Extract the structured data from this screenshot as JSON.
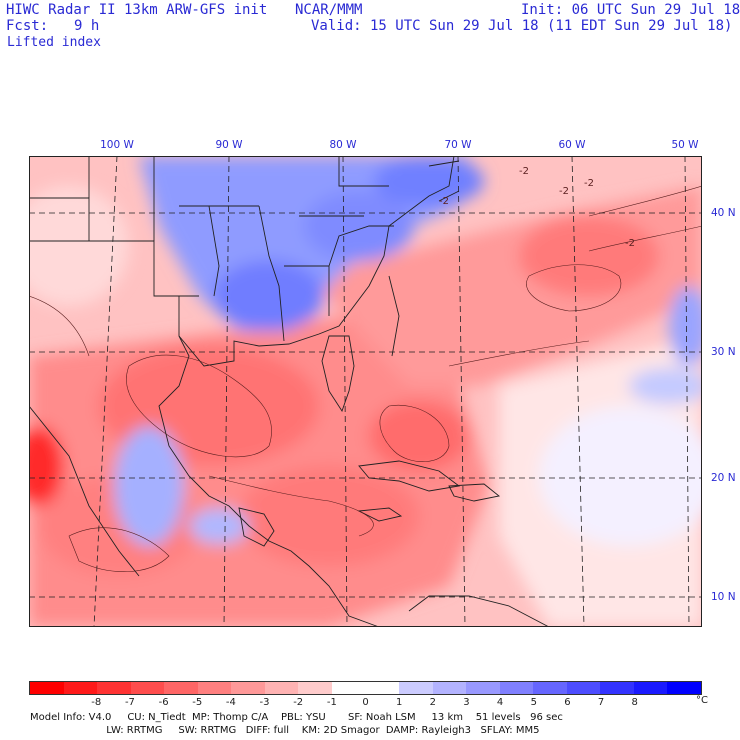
{
  "header": {
    "title": "HIWC Radar II 13km ARW-GFS init",
    "org": "NCAR/MMM",
    "init": "Init: 06 UTC Sun 29 Jul 18",
    "fcst_label": "Fcst:",
    "fcst_value": "9 h",
    "valid": "Valid: 15 UTC Sun 29 Jul 18 (11 EDT Sun 29 Jul 18)",
    "field": "Lifted index"
  },
  "map": {
    "lon_labels": [
      "100 W",
      "90 W",
      "80 W",
      "70 W",
      "60 W",
      "50 W"
    ],
    "lat_labels": [
      "40 N",
      "30 N",
      "20 N",
      "10 N"
    ],
    "contour_labels": [
      "-2",
      "-2",
      "-2",
      "-2",
      "-2"
    ]
  },
  "colorbar": {
    "ticks": [
      "-8",
      "-7",
      "-6",
      "-5",
      "-4",
      "-3",
      "-2",
      "-1",
      "0",
      "1",
      "2",
      "3",
      "4",
      "5",
      "6",
      "7",
      "8"
    ],
    "unit": "°C",
    "colors": [
      "#ff0000",
      "#ff1a1a",
      "#ff3333",
      "#ff4d4d",
      "#ff6666",
      "#ff8080",
      "#ff9999",
      "#ffb3b3",
      "#ffcccc",
      "#ffffff",
      "#ffffff",
      "#ccccff",
      "#b3b3ff",
      "#9999ff",
      "#8080ff",
      "#6666ff",
      "#4d4dff",
      "#3333ff",
      "#1a1aff",
      "#0000ff"
    ]
  },
  "footer": {
    "line1": "Model Info: V4.0     CU: N_Tiedt  MP: Thomp C/A    PBL: YSU       SF: Noah LSM     13 km    51 levels   96 sec",
    "line2": "                        LW: RRTMG     SW: RRTMG   DIFF: full    KM: 2D Smagor  DAMP: Rayleigh3   SFLAY: MM5"
  }
}
